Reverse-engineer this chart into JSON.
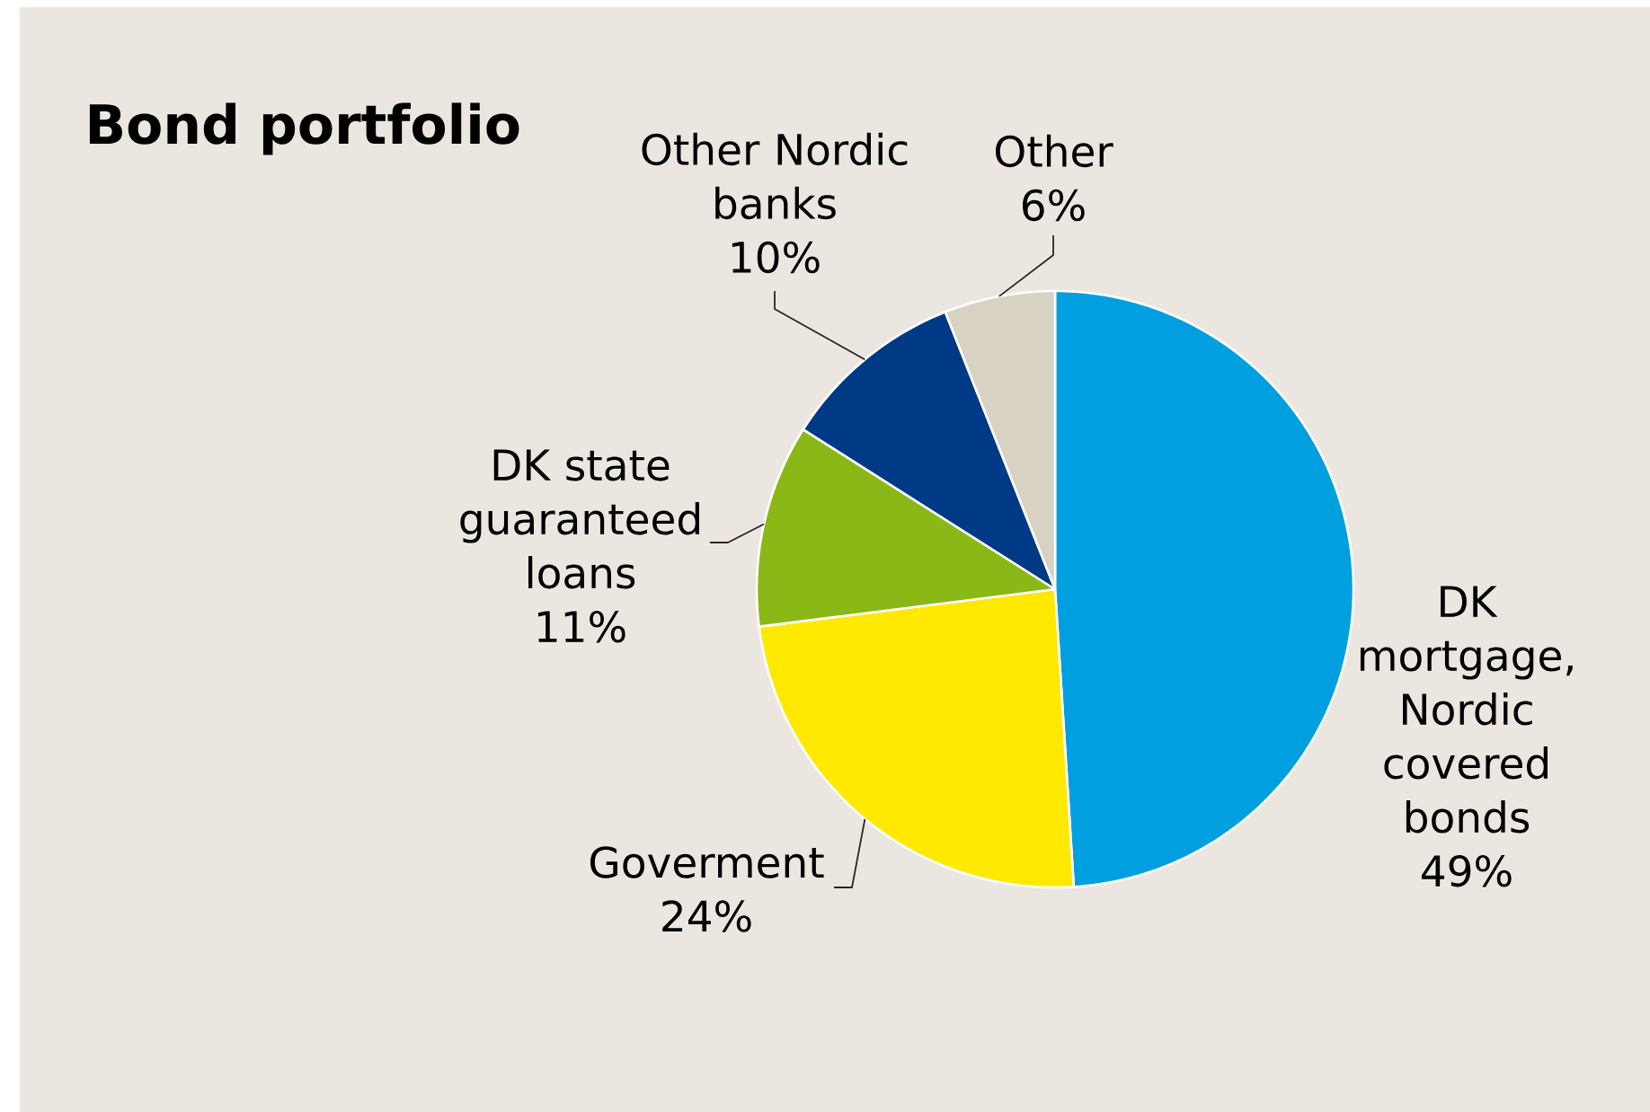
{
  "chart_data": {
    "type": "pie",
    "title": "Bond portfolio",
    "categories": [
      "DK mortgage, Nordic covered bonds",
      "Goverment",
      "DK state guaranteed loans",
      "Other Nordic banks",
      "Other"
    ],
    "values": [
      49,
      24,
      11,
      10,
      6
    ],
    "colors": [
      "#009fe0",
      "#ffe900",
      "#8ab817",
      "#003a87",
      "#d8d2c2"
    ],
    "value_labels": [
      "49%",
      "24%",
      "11%",
      "10%",
      "6%"
    ]
  }
}
